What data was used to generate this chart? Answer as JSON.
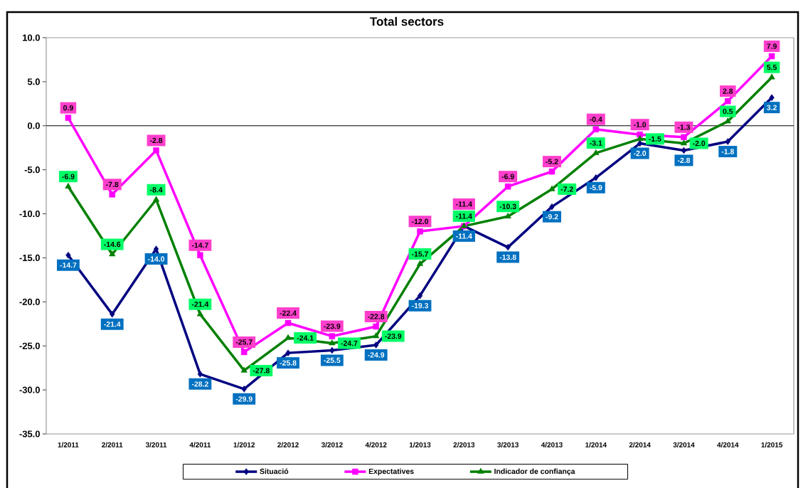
{
  "chart_data": {
    "type": "line",
    "title": "Total sectors",
    "categories": [
      "1/2011",
      "2/2011",
      "3/2011",
      "4/2011",
      "1/2012",
      "2/2012",
      "3/2012",
      "4/2012",
      "1/2013",
      "2/2013",
      "3/2013",
      "4/2013",
      "1/2014",
      "2/2014",
      "3/2014",
      "4/2014",
      "1/2015"
    ],
    "series": [
      {
        "name": "Situació",
        "color": "#000080",
        "marker": "diamond",
        "values": [
          -14.7,
          -21.4,
          -14.0,
          -28.2,
          -29.9,
          -25.8,
          -25.5,
          -24.9,
          -19.3,
          -11.4,
          -13.8,
          -9.2,
          -5.9,
          -2.0,
          -2.8,
          -1.8,
          3.2
        ],
        "value_labels": [
          "-14.7",
          "-21.4",
          "-14.0",
          "-28.2",
          "-29.9",
          "-25.8",
          "-25.5",
          "-24.9",
          "-19.3",
          "-11.4",
          "-13.8",
          "-9.2",
          "-5.9",
          "-2.0",
          "-2.8",
          "-1.8",
          "3.2"
        ]
      },
      {
        "name": "Expectatives",
        "color": "#ff00ff",
        "marker": "square",
        "values": [
          0.9,
          -7.8,
          -2.8,
          -14.7,
          -25.7,
          -22.4,
          -23.9,
          -22.8,
          -12.0,
          -11.4,
          -6.9,
          -5.2,
          -0.4,
          -1.0,
          -1.3,
          2.8,
          7.9
        ],
        "value_labels": [
          "0.9",
          "-7.8",
          "-2.8",
          "-14.7",
          "-25.7",
          "-22.4",
          "-23.9",
          "-22.8",
          "-12.0",
          "-11.4",
          "-6.9",
          "-5.2",
          "-0.4",
          "-1.0",
          "-1.3",
          "2.8",
          "7.9"
        ]
      },
      {
        "name": "Indicador de confiança",
        "color": "#008000",
        "marker": "triangle",
        "values": [
          -6.9,
          -14.6,
          -8.4,
          -21.4,
          -27.8,
          -24.1,
          -24.7,
          -23.9,
          -15.7,
          -11.4,
          -10.3,
          -7.2,
          -3.1,
          -1.5,
          -2.0,
          0.5,
          5.5
        ],
        "value_labels": [
          "-6.9",
          "-14.6",
          "-8.4",
          "-21.4",
          "-27.8",
          "-24.1",
          "-24.7",
          "-23.9",
          "-15.7",
          "-11.4",
          "-10.3",
          "-7.2",
          "-3.1",
          "-1.5",
          "-2.0",
          "0.5",
          "5.5"
        ]
      }
    ],
    "ylim": [
      -35,
      10
    ],
    "yticks": [
      {
        "value": -35,
        "label": "-35.0"
      },
      {
        "value": -30,
        "label": "-30.0"
      },
      {
        "value": -25,
        "label": "-25.0"
      },
      {
        "value": -20,
        "label": "-20.0"
      },
      {
        "value": -15,
        "label": "-15.0"
      },
      {
        "value": -10,
        "label": "-10.0"
      },
      {
        "value": -5,
        "label": "-5.0"
      },
      {
        "value": 0,
        "label": "0.0"
      },
      {
        "value": 5,
        "label": "5.0"
      },
      {
        "value": 10,
        "label": "10.0"
      }
    ],
    "ref_lines": [
      {
        "axis": "y",
        "value": 0,
        "color": "#000000"
      }
    ],
    "legend": "bottom"
  }
}
